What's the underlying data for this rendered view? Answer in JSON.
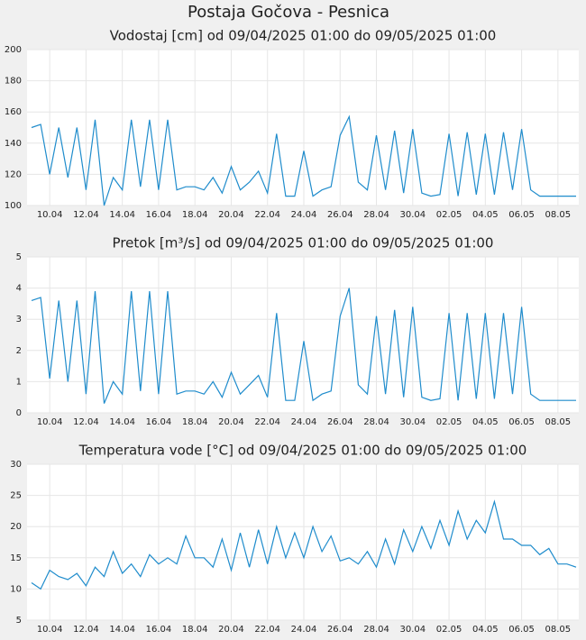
{
  "title": "Postaja Gočova - Pesnica",
  "chart_data": [
    {
      "type": "line",
      "title": "Vodostaj [cm] od 09/04/2025 01:00 do 09/05/2025 01:00",
      "categories": [
        null,
        null,
        "10.04",
        null,
        null,
        null,
        "12.04",
        null,
        null,
        null,
        "14.04",
        null,
        null,
        null,
        "16.04",
        null,
        null,
        null,
        "18.04",
        null,
        null,
        null,
        "20.04",
        null,
        null,
        null,
        "22.04",
        null,
        null,
        null,
        "24.04",
        null,
        null,
        null,
        "26.04",
        null,
        null,
        null,
        "28.04",
        null,
        null,
        null,
        "30.04",
        null,
        null,
        null,
        "02.05",
        null,
        null,
        null,
        "04.05",
        null,
        null,
        null,
        "06.05",
        null,
        null,
        null,
        "08.05",
        null,
        null
      ],
      "series": [
        {
          "name": "Vodostaj",
          "color": "#1f8ccc",
          "values": [
            150,
            152,
            120,
            150,
            118,
            150,
            110,
            155,
            100,
            118,
            110,
            155,
            112,
            155,
            110,
            155,
            110,
            112,
            112,
            110,
            118,
            108,
            125,
            110,
            115,
            122,
            108,
            146,
            106,
            106,
            135,
            106,
            110,
            112,
            145,
            157,
            115,
            110,
            145,
            110,
            148,
            108,
            149,
            108,
            106,
            107,
            146,
            106,
            147,
            107,
            146,
            107,
            147,
            110,
            149,
            110,
            106,
            106,
            106,
            106,
            106
          ]
        }
      ],
      "ylim": [
        100,
        200
      ],
      "yticks": [
        100,
        120,
        140,
        160,
        180,
        200
      ],
      "grid": true
    },
    {
      "type": "line",
      "title": "Pretok [m³/s] od 09/04/2025 01:00 do 09/05/2025 01:00",
      "categories": [
        null,
        null,
        "10.04",
        null,
        null,
        null,
        "12.04",
        null,
        null,
        null,
        "14.04",
        null,
        null,
        null,
        "16.04",
        null,
        null,
        null,
        "18.04",
        null,
        null,
        null,
        "20.04",
        null,
        null,
        null,
        "22.04",
        null,
        null,
        null,
        "24.04",
        null,
        null,
        null,
        "26.04",
        null,
        null,
        null,
        "28.04",
        null,
        null,
        null,
        "30.04",
        null,
        null,
        null,
        "02.05",
        null,
        null,
        null,
        "04.05",
        null,
        null,
        null,
        "06.05",
        null,
        null,
        null,
        "08.05",
        null,
        null
      ],
      "series": [
        {
          "name": "Pretok",
          "color": "#1f8ccc",
          "values": [
            3.6,
            3.7,
            1.1,
            3.6,
            1.0,
            3.6,
            0.6,
            3.9,
            0.3,
            1.0,
            0.6,
            3.9,
            0.7,
            3.9,
            0.6,
            3.9,
            0.6,
            0.7,
            0.7,
            0.6,
            1.0,
            0.5,
            1.3,
            0.6,
            0.9,
            1.2,
            0.5,
            3.2,
            0.4,
            0.4,
            2.3,
            0.4,
            0.6,
            0.7,
            3.1,
            4.0,
            0.9,
            0.6,
            3.1,
            0.6,
            3.3,
            0.5,
            3.4,
            0.5,
            0.4,
            0.45,
            3.2,
            0.4,
            3.2,
            0.45,
            3.2,
            0.45,
            3.2,
            0.6,
            3.4,
            0.6,
            0.4,
            0.4,
            0.4,
            0.4,
            0.4
          ]
        }
      ],
      "ylim": [
        0,
        5
      ],
      "yticks": [
        0,
        1,
        2,
        3,
        4,
        5
      ],
      "grid": true
    },
    {
      "type": "line",
      "title": "Temperatura vode [°C] od 09/04/2025 01:00 do 09/05/2025 01:00",
      "categories": [
        null,
        null,
        "10.04",
        null,
        null,
        null,
        "12.04",
        null,
        null,
        null,
        "14.04",
        null,
        null,
        null,
        "16.04",
        null,
        null,
        null,
        "18.04",
        null,
        null,
        null,
        "20.04",
        null,
        null,
        null,
        "22.04",
        null,
        null,
        null,
        "24.04",
        null,
        null,
        null,
        "26.04",
        null,
        null,
        null,
        "28.04",
        null,
        null,
        null,
        "30.04",
        null,
        null,
        null,
        "02.05",
        null,
        null,
        null,
        "04.05",
        null,
        null,
        null,
        "06.05",
        null,
        null,
        null,
        "08.05",
        null,
        null
      ],
      "series": [
        {
          "name": "Temperatura vode",
          "color": "#1f8ccc",
          "values": [
            11,
            10,
            13,
            12,
            11.5,
            12.5,
            10.5,
            13.5,
            12,
            16,
            12.5,
            14,
            12,
            15.5,
            14,
            15,
            14,
            18.5,
            15,
            15,
            13.5,
            18,
            13,
            19,
            13.5,
            19.5,
            14,
            20,
            15,
            19,
            15,
            20,
            16,
            18.5,
            14.5,
            15,
            14,
            16,
            13.5,
            18,
            14,
            19.5,
            16,
            20,
            16.5,
            21,
            17,
            22.5,
            18,
            21,
            19,
            24,
            18,
            18,
            17,
            17,
            15.5,
            16.5,
            14,
            14,
            13.5
          ]
        }
      ],
      "ylim": [
        5,
        30
      ],
      "yticks": [
        5,
        10,
        15,
        20,
        25,
        30
      ],
      "grid": true
    }
  ]
}
